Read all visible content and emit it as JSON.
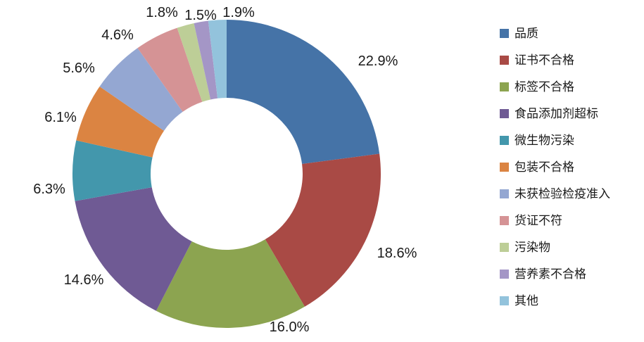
{
  "chart_data": {
    "type": "pie",
    "subtype": "donut",
    "title": "",
    "legend_position": "right",
    "direction": "clockwise",
    "start_angle_deg": 0,
    "hole_ratio": 0.49,
    "slices": [
      {
        "name": "品质",
        "value": 22.9,
        "label": "22.9%",
        "color": "#4573A7"
      },
      {
        "name": "证书不合格",
        "value": 18.6,
        "label": "18.6%",
        "color": "#A94A45"
      },
      {
        "name": "标签不合格",
        "value": 16.0,
        "label": "16.0%",
        "color": "#8CA450"
      },
      {
        "name": "食品添加剂超标",
        "value": 14.6,
        "label": "14.6%",
        "color": "#6F5A94"
      },
      {
        "name": "微生物污染",
        "value": 6.3,
        "label": "6.3%",
        "color": "#4397AC"
      },
      {
        "name": "包装不合格",
        "value": 6.1,
        "label": "6.1%",
        "color": "#DB8442"
      },
      {
        "name": "未获检验检疫准入",
        "value": 5.6,
        "label": "5.6%",
        "color": "#94A7D2"
      },
      {
        "name": "货证不符",
        "value": 4.6,
        "label": "4.6%",
        "color": "#D59395"
      },
      {
        "name": "污染物",
        "value": 1.8,
        "label": "1.8%",
        "color": "#BDCE97"
      },
      {
        "name": "营养素不合格",
        "value": 1.5,
        "label": "1.5%",
        "color": "#A496C6"
      },
      {
        "name": "其他",
        "value": 1.9,
        "label": "1.9%",
        "color": "#93C3DC"
      }
    ]
  }
}
